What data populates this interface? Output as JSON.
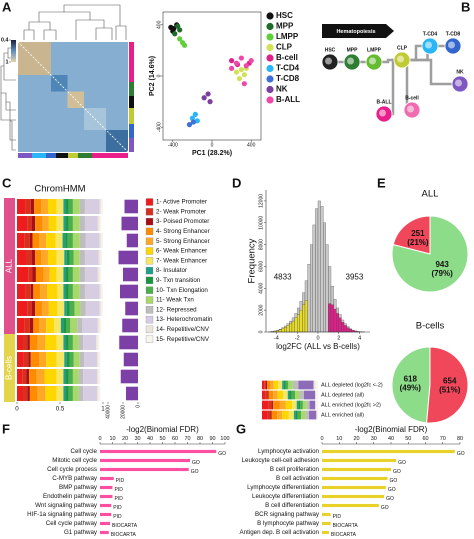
{
  "panel_labels": [
    "A",
    "B",
    "C",
    "D",
    "E",
    "F",
    "G"
  ],
  "diagram": {
    "title": "Hematopoiesis",
    "nodes": [
      {
        "label": "HSC",
        "color": "#222222"
      },
      {
        "label": "MPP",
        "color": "#2e7d32"
      },
      {
        "label": "LMPP",
        "color": "#66bb33"
      },
      {
        "label": "CLP",
        "color": "#c0ca33"
      },
      {
        "label": "T-CD4",
        "color": "#29b6f6"
      },
      {
        "label": "T-CD8",
        "color": "#3366cc"
      },
      {
        "label": "NK",
        "color": "#7e57c2"
      },
      {
        "label": "B-ALL",
        "color": "#e91e8c"
      },
      {
        "label": "B-cell",
        "color": "#f06bb0"
      }
    ]
  },
  "chart_data": [
    {
      "type": "heatmap",
      "zlim": [
        0.4,
        1
      ],
      "zticks": [
        0.4,
        1
      ]
    },
    {
      "type": "scatter",
      "xlabel": "PC1 (28.2%)",
      "ylabel": "PC2 (14.6%)",
      "xlim": [
        -500,
        500
      ],
      "ylim": [
        -500,
        500
      ],
      "xticks": [
        -400,
        0,
        400
      ],
      "yticks": [
        -400,
        0,
        400
      ],
      "legend": "right",
      "series": [
        {
          "name": "HSC",
          "color": "#111111",
          "x": [
            -420,
            -390,
            -360,
            -400
          ],
          "y": [
            380,
            370,
            400,
            350
          ]
        },
        {
          "name": "MPP",
          "color": "#1e6b2a",
          "x": [
            -350,
            -330,
            -380
          ],
          "y": [
            390,
            360,
            330
          ]
        },
        {
          "name": "LMPP",
          "color": "#5fcf3a",
          "x": [
            -330,
            -300,
            -280
          ],
          "y": [
            290,
            260,
            240
          ]
        },
        {
          "name": "CLP",
          "color": "#d4e157",
          "x": [
            250,
            300,
            330,
            280,
            350
          ],
          "y": [
            30,
            50,
            10,
            -20,
            60
          ]
        },
        {
          "name": "B-cell",
          "color": "#e0208a",
          "x": [
            200,
            260,
            380
          ],
          "y": [
            120,
            90,
            100
          ]
        },
        {
          "name": "T-CD4",
          "color": "#29b6f6",
          "x": [
            -200,
            -170,
            -150
          ],
          "y": [
            -330,
            -300,
            -350
          ]
        },
        {
          "name": "T-CD8",
          "color": "#3f6fd8",
          "x": [
            -230,
            -190
          ],
          "y": [
            -380,
            -360
          ]
        },
        {
          "name": "NK",
          "color": "#7b3fa0",
          "x": [
            -80,
            -40,
            -20
          ],
          "y": [
            -170,
            -140,
            -200
          ]
        },
        {
          "name": "B-ALL",
          "color": "#f048a8",
          "x": [
            200,
            250,
            300,
            350,
            400,
            330
          ],
          "y": [
            60,
            100,
            140,
            80,
            120,
            -60
          ]
        }
      ]
    },
    {
      "type": "stacked_hbar",
      "title": "ChromHMM",
      "categories": [
        null,
        null,
        null,
        null,
        null,
        null,
        null,
        null,
        null,
        null,
        null,
        null
      ],
      "row_groups": [
        "ALL",
        "ALL",
        "ALL",
        "ALL",
        "ALL",
        "ALL",
        "ALL",
        "ALL",
        "B-cells",
        "B-cells",
        "B-cells",
        "B-cells"
      ],
      "group_colors": {
        "ALL": "#e0508a",
        "B-cells": "#e3d44b"
      },
      "xlim": [
        0,
        1
      ],
      "xticks": [
        0,
        0.5,
        1
      ],
      "series": [
        {
          "name": "1- Active Promoter",
          "color": "#ee1c1c",
          "values": [
            0.1,
            0.12,
            0.09,
            0.11,
            0.13,
            0.1,
            0.12,
            0.09,
            0.07,
            0.08,
            0.06,
            0.07
          ]
        },
        {
          "name": "2- Weak Promoter",
          "color": "#d7301f",
          "values": [
            0.06,
            0.05,
            0.06,
            0.06,
            0.05,
            0.06,
            0.05,
            0.06,
            0.05,
            0.05,
            0.05,
            0.05
          ]
        },
        {
          "name": "3- Poised Promoter",
          "color": "#a50f15",
          "values": [
            0.04,
            0.04,
            0.03,
            0.04,
            0.04,
            0.03,
            0.04,
            0.04,
            0.03,
            0.03,
            0.03,
            0.03
          ]
        },
        {
          "name": "4- Strong Enhancer",
          "color": "#ff8c00",
          "values": [
            0.08,
            0.09,
            0.08,
            0.07,
            0.09,
            0.08,
            0.08,
            0.07,
            0.09,
            0.1,
            0.09,
            0.09
          ]
        },
        {
          "name": "5- Strong Enhancer",
          "color": "#ffa726",
          "values": [
            0.08,
            0.07,
            0.08,
            0.08,
            0.07,
            0.08,
            0.08,
            0.08,
            0.09,
            0.08,
            0.09,
            0.09
          ]
        },
        {
          "name": "6- Weak Enhancer",
          "color": "#ffd600",
          "values": [
            0.1,
            0.09,
            0.11,
            0.1,
            0.08,
            0.12,
            0.1,
            0.09,
            0.13,
            0.12,
            0.14,
            0.13
          ]
        },
        {
          "name": "7- Weak Enhancer",
          "color": "#f5e663",
          "values": [
            0.08,
            0.08,
            0.08,
            0.09,
            0.08,
            0.07,
            0.08,
            0.08,
            0.08,
            0.09,
            0.08,
            0.08
          ]
        },
        {
          "name": "8- Insulator",
          "color": "#1f9e89",
          "values": [
            0.03,
            0.03,
            0.03,
            0.03,
            0.03,
            0.03,
            0.03,
            0.03,
            0.03,
            0.03,
            0.03,
            0.03
          ]
        },
        {
          "name": "9- Txn transition",
          "color": "#1a9641",
          "values": [
            0.03,
            0.03,
            0.03,
            0.03,
            0.03,
            0.03,
            0.03,
            0.03,
            0.03,
            0.03,
            0.03,
            0.03
          ]
        },
        {
          "name": "10- Txn Elongation",
          "color": "#4cae4c",
          "values": [
            0.05,
            0.05,
            0.06,
            0.05,
            0.05,
            0.05,
            0.06,
            0.05,
            0.05,
            0.05,
            0.05,
            0.05
          ]
        },
        {
          "name": "11- Weak Txn",
          "color": "#a6d96a",
          "values": [
            0.08,
            0.08,
            0.08,
            0.07,
            0.08,
            0.08,
            0.07,
            0.08,
            0.07,
            0.07,
            0.07,
            0.07
          ]
        },
        {
          "name": "12- Repressed",
          "color": "#bdbdbd",
          "values": [
            0.06,
            0.06,
            0.07,
            0.06,
            0.06,
            0.06,
            0.06,
            0.06,
            0.05,
            0.05,
            0.05,
            0.05
          ]
        },
        {
          "name": "13- Heterochromatin",
          "color": "#d6cde3",
          "values": [
            0.17,
            0.15,
            0.16,
            0.16,
            0.15,
            0.17,
            0.16,
            0.18,
            0.15,
            0.15,
            0.16,
            0.16
          ]
        },
        {
          "name": "14- Repetitive/CNV",
          "color": "#ece6da",
          "values": [
            0.02,
            0.02,
            0.02,
            0.02,
            0.02,
            0.02,
            0.02,
            0.02,
            0.02,
            0.02,
            0.02,
            0.02
          ]
        },
        {
          "name": "15- Repetitive/CNV",
          "color": "#f7f4ee",
          "values": [
            0.02,
            0.02,
            0.02,
            0.02,
            0.02,
            0.02,
            0.02,
            0.02,
            0.02,
            0.02,
            0.02,
            0.02
          ]
        }
      ]
    },
    {
      "type": "bar",
      "orientation": "horizontal",
      "categories": [
        null,
        null,
        null,
        null,
        null,
        null,
        null,
        null,
        null,
        null,
        null,
        null
      ],
      "values": [
        18000,
        22000,
        15000,
        26000,
        20000,
        24000,
        17000,
        21000,
        25000,
        19000,
        23000,
        16000
      ],
      "color": "#7b3fa6",
      "xlim": [
        40000,
        0
      ],
      "xticks": [
        40000,
        20000,
        0
      ]
    },
    {
      "type": "histogram",
      "xlabel": "log2FC (ALL vs B-cells)",
      "ylabel": "Frequency",
      "bins": [
        -5,
        -4.75,
        -4.5,
        -4.25,
        -4,
        -3.75,
        -3.5,
        -3.25,
        -3,
        -2.75,
        -2.5,
        -2.25,
        -2,
        -1.75,
        -1.5,
        -1.25,
        -1,
        -0.75,
        -0.5,
        -0.25,
        0,
        0.25,
        0.5,
        0.75,
        1,
        1.25,
        1.5,
        1.75,
        2,
        2.25,
        2.5,
        2.75,
        3,
        3.25,
        3.5,
        3.75,
        4,
        4.25,
        4.5,
        4.75,
        5
      ],
      "xlim": [
        -5,
        5
      ],
      "xticks": [
        -4,
        -2,
        0,
        2,
        4
      ],
      "ylim": [
        0,
        13000
      ],
      "yticks": [
        0,
        2000,
        4000,
        6000,
        8000,
        10000,
        12000
      ],
      "annotations": [
        4833,
        3953
      ],
      "series": [
        {
          "color": "#c8c8c8",
          "values": [
            0,
            20,
            50,
            100,
            150,
            250,
            400,
            550,
            750,
            1000,
            1300,
            1700,
            2200,
            2800,
            3600,
            4700,
            6200,
            8000,
            9800,
            11300,
            12000,
            11500,
            10000,
            8000,
            6000,
            4200,
            3000,
            2200,
            1600,
            1100,
            750,
            500,
            300,
            180,
            100,
            50,
            20,
            10,
            0,
            0
          ]
        },
        {
          "color": "#e8dc2a",
          "values": [
            0,
            15,
            40,
            80,
            120,
            200,
            320,
            440,
            600,
            800,
            1000,
            1300,
            1600,
            2000,
            2500,
            2900,
            0,
            0,
            0,
            0,
            0,
            0,
            0,
            0,
            0,
            0,
            0,
            0,
            0,
            0,
            0,
            0,
            0,
            0,
            0,
            0,
            0,
            0,
            0,
            0
          ]
        },
        {
          "color": "#e0208a",
          "values": [
            0,
            0,
            0,
            0,
            0,
            0,
            0,
            0,
            0,
            0,
            0,
            0,
            0,
            0,
            0,
            0,
            0,
            0,
            0,
            0,
            0,
            0,
            0,
            0,
            2600,
            2500,
            2100,
            1700,
            1300,
            900,
            600,
            400,
            250,
            150,
            80,
            40,
            15,
            5,
            0,
            0
          ]
        }
      ]
    },
    {
      "type": "stacked_hbar",
      "categories": [
        "ALL depleted (log2fc <-2)",
        "ALL depleted (all)",
        "ALL enriched (log2fc >2)",
        "ALL enriched (all)"
      ],
      "xlim": [
        0,
        1
      ],
      "series": [
        {
          "color": "#ee1c1c",
          "values": [
            0.04,
            0.06,
            0.12,
            0.1
          ]
        },
        {
          "color": "#d7301f",
          "values": [
            0.03,
            0.04,
            0.06,
            0.05
          ]
        },
        {
          "color": "#a50f15",
          "values": [
            0.02,
            0.02,
            0.02,
            0.02
          ]
        },
        {
          "color": "#ff8c00",
          "values": [
            0.06,
            0.08,
            0.12,
            0.1
          ]
        },
        {
          "color": "#ffa726",
          "values": [
            0.06,
            0.08,
            0.1,
            0.09
          ]
        },
        {
          "color": "#ffd600",
          "values": [
            0.08,
            0.1,
            0.12,
            0.12
          ]
        },
        {
          "color": "#f5e663",
          "values": [
            0.07,
            0.08,
            0.08,
            0.09
          ]
        },
        {
          "color": "#1f9e89",
          "values": [
            0.03,
            0.03,
            0.03,
            0.03
          ]
        },
        {
          "color": "#1a9641",
          "values": [
            0.03,
            0.04,
            0.03,
            0.04
          ]
        },
        {
          "color": "#4cae4c",
          "values": [
            0.05,
            0.06,
            0.05,
            0.06
          ]
        },
        {
          "color": "#a6d96a",
          "values": [
            0.08,
            0.08,
            0.07,
            0.08
          ]
        },
        {
          "color": "#bdbdbd",
          "values": [
            0.1,
            0.08,
            0.05,
            0.06
          ]
        },
        {
          "color": "#8e6bb8",
          "values": [
            0.27,
            0.2,
            0.1,
            0.13
          ]
        },
        {
          "color": "#ece6da",
          "values": [
            0.04,
            0.02,
            0.02,
            0.02
          ]
        },
        {
          "color": "#f7f4ee",
          "values": [
            0.04,
            0.03,
            0.03,
            0.01
          ]
        }
      ]
    },
    {
      "type": "pie",
      "title": "ALL",
      "values": [
        251,
        943
      ],
      "value_labels": [
        "251\n(21%)",
        "943\n(79%)"
      ],
      "colors": [
        "#f0475a",
        "#8ddc8a"
      ]
    },
    {
      "type": "pie",
      "title": "B-cells",
      "values": [
        618,
        654
      ],
      "value_labels": [
        "618\n(49%)",
        "654\n(51%)"
      ],
      "colors": [
        "#8ddc8a",
        "#f0475a"
      ]
    },
    {
      "type": "bar",
      "orientation": "horizontal",
      "title": "-log2(Binomial FDR)",
      "categories": [
        "Cell cycle",
        "Mitotic cell cycle",
        "Cell cycle process",
        "C-MYB pathway",
        "BMP pathway",
        "Endothelin pathway",
        "Wnt signaling pathway",
        "HIF-1a signaling pathway",
        "Cell cycle pathway",
        "G1 pathway"
      ],
      "values": [
        93,
        72,
        71,
        11,
        10,
        10,
        9,
        9,
        8,
        7
      ],
      "sources": [
        "GO",
        "GO",
        "GO",
        "PID",
        "PID",
        "PID",
        "PID",
        "PID",
        "BIOCARTA",
        "BIOCARTA"
      ],
      "color": "#ff4fa0",
      "xlim": [
        0,
        100
      ],
      "xticks": [
        0,
        10,
        20,
        30,
        40,
        50,
        60,
        70,
        80,
        90,
        100
      ]
    },
    {
      "type": "bar",
      "orientation": "horizontal",
      "title": "-log2(Binomial FDR)",
      "categories": [
        "Lymphocyte activation",
        "Leukocyte cell-cell adhesion",
        "B cell proliferation",
        "B cell activation",
        "Lymphocyte differentiation",
        "Leukocyte differentiation",
        "B cell differentiation",
        "BCR signaling pathway",
        "B lymphocyte pathway",
        "Antigen dep. B cell activation"
      ],
      "values": [
        77,
        43,
        40,
        38,
        37,
        36,
        33,
        5,
        5,
        4
      ],
      "sources": [
        "GO",
        "GO",
        "GO",
        "GO",
        "GO",
        "GO",
        "GO",
        "PID",
        "BIOCARTA",
        "BIOCARTA"
      ],
      "color": "#e8d22a",
      "xlim": [
        0,
        80
      ],
      "xticks": [
        0,
        10,
        20,
        30,
        40,
        50,
        60,
        70,
        80
      ]
    }
  ]
}
